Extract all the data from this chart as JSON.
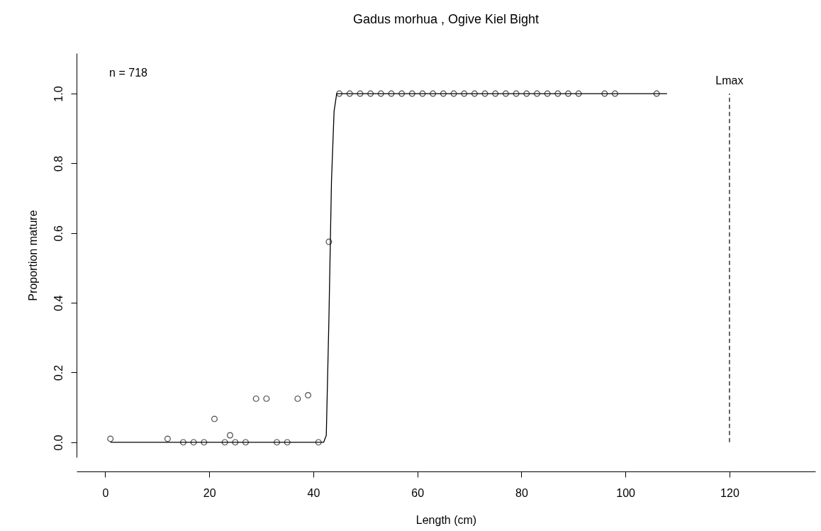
{
  "chart_data": {
    "type": "scatter",
    "title": "Gadus morhua , Ogive Kiel Bight",
    "xlabel": "Length (cm)",
    "ylabel": "Proportion mature",
    "xlim": [
      -5.5,
      136.5
    ],
    "xticks": [
      0,
      20,
      40,
      60,
      80,
      100,
      120
    ],
    "ylim": [
      -0.043,
      1.116
    ],
    "yticks": [
      {
        "value": 0,
        "label": "0.0"
      },
      {
        "value": 0.2,
        "label": "0.2"
      },
      {
        "value": 0.4,
        "label": "0.4"
      },
      {
        "value": 0.6,
        "label": "0.6"
      },
      {
        "value": 0.8,
        "label": "0.8"
      },
      {
        "value": 1,
        "label": "1.0"
      }
    ],
    "grid": false,
    "series": [
      {
        "type": "scatter",
        "marker": "circle",
        "color": "#000000",
        "x": [
          1,
          12,
          15,
          17,
          19,
          21,
          23,
          24,
          25,
          27,
          29,
          31,
          33,
          35,
          37,
          39,
          41,
          43,
          45,
          47,
          49,
          51,
          53,
          55,
          57,
          59,
          61,
          63,
          65,
          67,
          69,
          71,
          73,
          75,
          77,
          79,
          81,
          83,
          85,
          87,
          89,
          91,
          96,
          98,
          106
        ],
        "values": [
          0.01,
          0.01,
          0,
          0,
          0,
          0.067,
          0,
          0.02,
          0,
          0,
          0.125,
          0.125,
          0,
          0,
          0.125,
          0.135,
          0,
          0.575,
          1,
          1,
          1,
          1,
          1,
          1,
          1,
          1,
          1,
          1,
          1,
          1,
          1,
          1,
          1,
          1,
          1,
          1,
          1,
          1,
          1,
          1,
          1,
          1,
          1,
          1,
          1
        ]
      },
      {
        "type": "line",
        "marker": "none",
        "line_style": "solid",
        "color": "#000000",
        "x": [
          1,
          42,
          42.5,
          43,
          43.5,
          44,
          44.5,
          108
        ],
        "values": [
          0,
          0,
          0.02,
          0.35,
          0.75,
          0.95,
          1,
          1
        ]
      }
    ],
    "ref_lines": [
      {
        "axis": "x",
        "value": 120,
        "label": "Lmax",
        "line_style": "dashed",
        "color": "#000000"
      }
    ],
    "annotations": [
      "n = 718"
    ]
  }
}
